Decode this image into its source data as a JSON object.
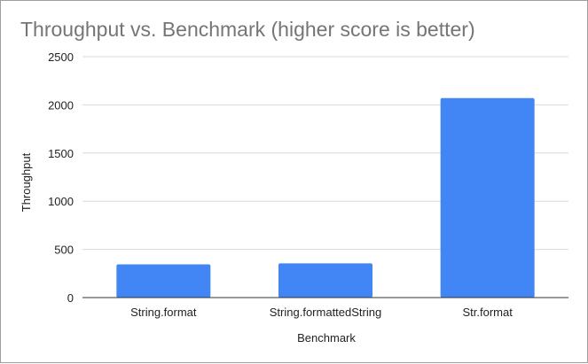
{
  "chart_data": {
    "type": "bar",
    "title": "Throughput vs. Benchmark (higher score is better)",
    "xlabel": "Benchmark",
    "ylabel": "Throughput",
    "categories": [
      "String.format",
      "String.formattedString",
      "Str.format"
    ],
    "values": [
      345,
      355,
      2070
    ],
    "ylim": [
      0,
      2500
    ],
    "yticks": [
      0,
      500,
      1000,
      1500,
      2000,
      2500
    ],
    "grid": true,
    "legend": "none",
    "colors": {
      "bar": "#4285f4",
      "title": "#757575",
      "grid": "#d9d9d9",
      "text": "#222222"
    }
  }
}
